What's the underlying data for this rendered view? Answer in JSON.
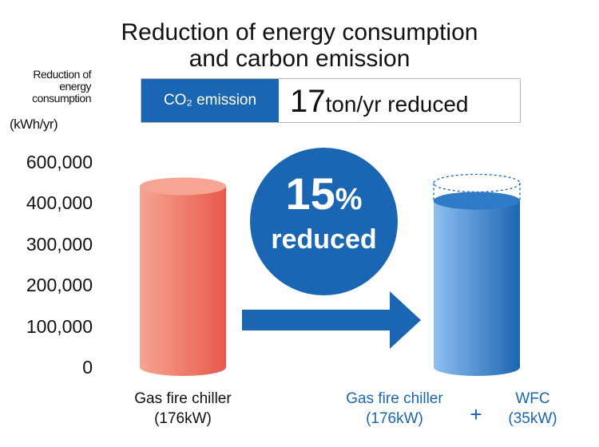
{
  "title": {
    "line1": "Reduction of energy consumption",
    "line2": "and carbon emission"
  },
  "banner": {
    "tag": "CO₂ emission",
    "value_number": "17",
    "value_rest": "ton/yr reduced"
  },
  "callout": {
    "percent_number": "15",
    "percent_sign": "%",
    "text": "reduced"
  },
  "plus_sign": "+",
  "colors": {
    "accent_blue": "#1a66b2",
    "before_bar_light": "#f6a592",
    "before_bar_dark": "#e8584a",
    "after_bar_light": "#8ebff0",
    "after_bar_dark": "#1a66b2",
    "label_blue": "#1a66b2"
  },
  "chart_data": {
    "type": "bar",
    "ylabel": "Reduction of energy consumption",
    "yunit": "(kWh/yr)",
    "yticks": [
      "0",
      "100,000",
      "200,000",
      "300,000",
      "400,000",
      "600,000"
    ],
    "categories": [
      {
        "name": "Gas fire chiller",
        "sub": "(176kW)"
      },
      {
        "name": "Gas fire chiller",
        "sub": "(176kW)",
        "name_2": "WFC",
        "sub_2": "(35kW)"
      }
    ],
    "values": [
      480000,
      410000
    ],
    "reference_before_value": 480000,
    "grid": false,
    "legend": "none"
  }
}
